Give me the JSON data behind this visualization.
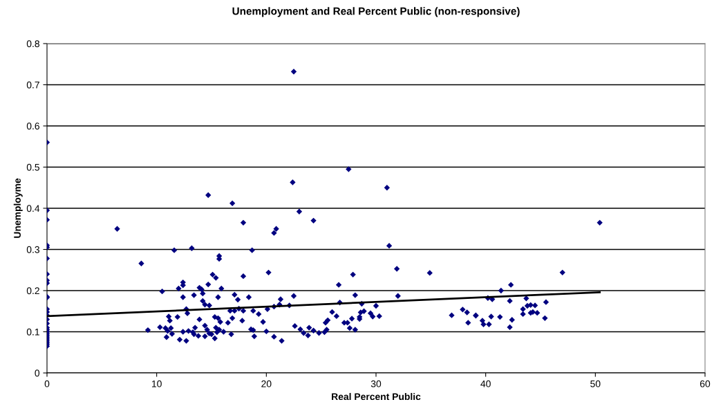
{
  "chart_data": {
    "type": "scatter",
    "title": "Unemployment and Real Percent Public (non-responsive)",
    "xlabel": "Real Percent Public",
    "ylabel": "Unemployme",
    "xlim": [
      0,
      60
    ],
    "xticks": [
      0,
      10,
      20,
      30,
      40,
      50,
      60
    ],
    "ylim": [
      0,
      0.8
    ],
    "yticks": [
      0,
      0.1,
      0.2,
      0.3,
      0.4,
      0.5,
      0.6,
      0.7,
      0.8
    ],
    "grid": "y",
    "marker": "diamond",
    "series": [
      {
        "color": "#000080",
        "x": [
          0,
          0,
          0,
          0,
          0,
          0,
          0,
          0,
          0,
          0,
          0,
          0,
          0,
          0,
          0,
          0,
          0,
          0,
          0,
          0,
          0,
          0,
          0,
          0,
          0,
          0,
          6.4,
          8.6,
          9.2,
          10.5,
          10.3,
          10.8,
          11.0,
          10.9,
          11.3,
          11.4,
          11.1,
          11.2,
          11.6,
          11.9,
          12.0,
          12.4,
          12.4,
          12.4,
          12.1,
          12.4,
          12.7,
          12.8,
          12.7,
          12.9,
          13.3,
          13.4,
          13.5,
          13.8,
          13.2,
          13.4,
          13.9,
          13.9,
          14.1,
          14.2,
          14.2,
          14.4,
          14.4,
          14.6,
          14.8,
          14.4,
          14.7,
          14.7,
          14.8,
          15.1,
          15.4,
          15.0,
          15.3,
          15.3,
          15.4,
          15.5,
          15.7,
          15.8,
          15.6,
          15.6,
          15.7,
          15.7,
          15.9,
          16.1,
          16.5,
          16.8,
          16.9,
          16.9,
          17.1,
          16.7,
          17.1,
          17.4,
          17.5,
          17.8,
          17.9,
          17.9,
          17.9,
          18.4,
          18.6,
          18.8,
          18.9,
          18.7,
          22.4,
          23.0,
          24.3,
          20.7,
          20.9,
          27.5,
          31.0,
          31.2,
          20.2,
          27.9,
          31.9,
          34.9,
          26.6,
          28.1,
          32.0,
          22.5,
          21.3,
          21.2,
          20.7,
          20.1,
          22.1,
          18.8,
          19.3,
          19.7,
          20.0,
          20.7,
          21.4,
          22.6,
          23.1,
          23.4,
          23.8,
          23.9,
          24.3,
          24.8,
          25.3,
          25.5,
          25.4,
          25.6,
          26.0,
          26.4,
          26.7,
          27.1,
          27.4,
          27.6,
          27.8,
          28.1,
          28.5,
          28.5,
          28.6,
          28.7,
          28.9,
          29.5,
          29.7,
          30.0,
          30.3,
          36.9,
          37.9,
          38.3,
          38.4,
          39.1,
          22.5,
          50.4,
          47.0,
          42.3,
          41.4,
          40.2,
          40.6,
          42.2,
          43.7,
          45.5,
          43.4,
          43.8,
          44.1,
          44.5,
          43.4,
          44.1,
          44.3,
          44.7,
          45.4,
          39.1,
          39.7,
          39.8,
          40.3,
          40.5,
          41.3,
          42.2,
          42.4
        ],
        "values": [
          0.56,
          0.395,
          0.372,
          0.31,
          0.305,
          0.278,
          0.24,
          0.225,
          0.218,
          0.185,
          0.183,
          0.155,
          0.148,
          0.14,
          0.13,
          0.12,
          0.11,
          0.105,
          0.1,
          0.095,
          0.09,
          0.085,
          0.08,
          0.075,
          0.07,
          0.065,
          0.35,
          0.266,
          0.104,
          0.198,
          0.111,
          0.109,
          0.102,
          0.087,
          0.109,
          0.095,
          0.137,
          0.127,
          0.298,
          0.136,
          0.205,
          0.22,
          0.213,
          0.184,
          0.081,
          0.1,
          0.078,
          0.145,
          0.155,
          0.102,
          0.099,
          0.094,
          0.11,
          0.09,
          0.303,
          0.189,
          0.13,
          0.207,
          0.203,
          0.193,
          0.175,
          0.166,
          0.115,
          0.105,
          0.096,
          0.089,
          0.215,
          0.432,
          0.164,
          0.239,
          0.231,
          0.094,
          0.084,
          0.136,
          0.11,
          0.099,
          0.105,
          0.124,
          0.133,
          0.184,
          0.284,
          0.277,
          0.205,
          0.1,
          0.122,
          0.094,
          0.412,
          0.133,
          0.19,
          0.151,
          0.151,
          0.178,
          0.156,
          0.127,
          0.365,
          0.235,
          0.151,
          0.184,
          0.106,
          0.104,
          0.089,
          0.298,
          0.463,
          0.392,
          0.37,
          0.34,
          0.35,
          0.495,
          0.45,
          0.309,
          0.244,
          0.239,
          0.253,
          0.243,
          0.214,
          0.189,
          0.187,
          0.187,
          0.179,
          0.166,
          0.161,
          0.155,
          0.164,
          0.151,
          0.143,
          0.124,
          0.101,
          0.088,
          0.078,
          0.114,
          0.106,
          0.097,
          0.091,
          0.11,
          0.103,
          0.097,
          0.099,
          0.105,
          0.122,
          0.128,
          0.148,
          0.138,
          0.171,
          0.122,
          0.122,
          0.109,
          0.132,
          0.105,
          0.131,
          0.136,
          0.147,
          0.168,
          0.15,
          0.145,
          0.137,
          0.163,
          0.138,
          0.14,
          0.154,
          0.147,
          0.122,
          0.14,
          0.732,
          0.365,
          0.244,
          0.214,
          0.2,
          0.182,
          0.179,
          0.175,
          0.181,
          0.172,
          0.155,
          0.163,
          0.165,
          0.164,
          0.143,
          0.146,
          0.148,
          0.146,
          0.133,
          0.139,
          0.127,
          0.118,
          0.118,
          0.137,
          0.136,
          0.111,
          0.129
        ]
      },
      {
        "type": "line",
        "color": "#000000",
        "marker": "none",
        "x": [
          0,
          50.4
        ],
        "values": [
          0.138,
          0.196
        ]
      }
    ]
  }
}
